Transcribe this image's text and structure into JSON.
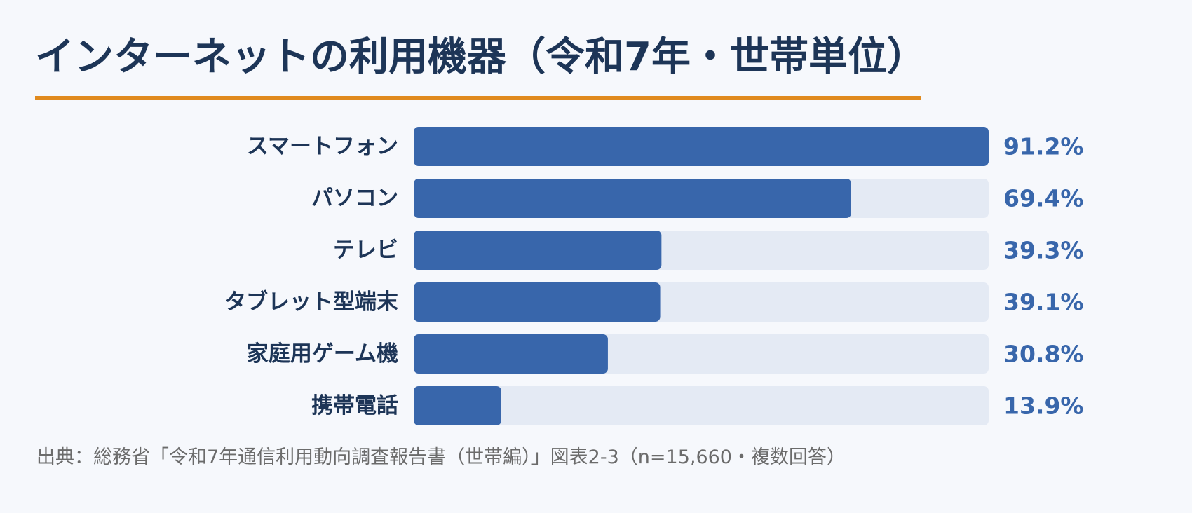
{
  "chart_data": {
    "type": "bar",
    "orientation": "horizontal",
    "title": "インターネットの利用機器（令和7年・世帯単位）",
    "unit": "%",
    "categories": [
      "スマートフォン",
      "パソコン",
      "テレビ",
      "タブレット型端末",
      "家庭用ゲーム機",
      "携帯電話"
    ],
    "values": [
      91.2,
      69.4,
      39.3,
      39.1,
      30.8,
      13.9
    ],
    "value_labels": [
      "91.2%",
      "69.4%",
      "39.3%",
      "39.1%",
      "30.8%",
      "13.9%"
    ],
    "xlim": [
      0,
      91.2
    ],
    "grid": false,
    "legend": "none"
  },
  "source": "出典：総務省「令和7年通信利用動向調査報告書（世帯編）」図表2-3（n=15,660・複数回答）",
  "colors": {
    "background": "#f6f8fc",
    "title": "#1d3557",
    "accent_underline": "#e08a1e",
    "bar_fill": "#3866ab",
    "bar_track": "#e4eaf4",
    "value_text": "#3866ab",
    "source_text": "#6b6b6b"
  }
}
